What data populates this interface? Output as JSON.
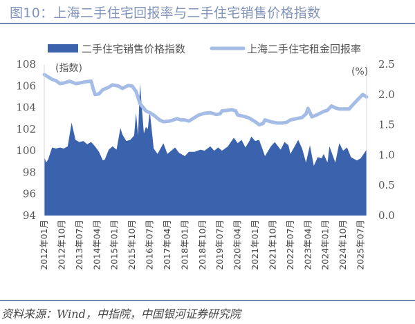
{
  "title": "图10：上海二手住宅回报率与二手住宅销售价格指数",
  "source": "资料来源：Wind，中指院，中国银河证券研究院",
  "chart_data": {
    "type": "area+line",
    "x_unit": "month",
    "x_start": "2012-01",
    "x_end": "2025-10",
    "x_tick_labels": [
      "2012年01月",
      "2012年10月",
      "2013年07月",
      "2014年04月",
      "2015年01月",
      "2015年10月",
      "2016年07月",
      "2017年04月",
      "2018年01月",
      "2018年10月",
      "2019年07月",
      "2020年04月",
      "2021年01月",
      "2021年10月",
      "2022年07月",
      "2023年04月",
      "2024年01月",
      "2024年10月",
      "2025年07月"
    ],
    "left_axis": {
      "label": "(指数)",
      "ylim": [
        94,
        108
      ],
      "ticks": [
        "94",
        "96",
        "98",
        "100",
        "102",
        "104",
        "106",
        "108"
      ]
    },
    "right_axis": {
      "label": "(%)",
      "ylim": [
        0,
        2.5
      ],
      "ticks": [
        "0.0",
        "0.5",
        "1.0",
        "1.5",
        "2.0",
        "2.5"
      ]
    },
    "legend_position": "top",
    "series": [
      {
        "name": "二手住宅销售价格指数",
        "kind": "area",
        "axis": "left",
        "color": "#3a62ad",
        "points_month_index_value": [
          [
            0,
            99.4
          ],
          [
            1,
            98.9
          ],
          [
            2,
            99.2
          ],
          [
            4,
            100.3
          ],
          [
            6,
            100.2
          ],
          [
            8,
            100.3
          ],
          [
            10,
            100.2
          ],
          [
            12,
            100.4
          ],
          [
            14,
            102.6
          ],
          [
            16,
            101.0
          ],
          [
            18,
            100.8
          ],
          [
            20,
            100.9
          ],
          [
            22,
            100.6
          ],
          [
            24,
            100.8
          ],
          [
            26,
            100.4
          ],
          [
            28,
            99.9
          ],
          [
            30,
            99.1
          ],
          [
            31,
            99.2
          ],
          [
            33,
            100.1
          ],
          [
            35,
            100.4
          ],
          [
            37,
            100.1
          ],
          [
            39,
            102.1
          ],
          [
            40,
            101.5
          ],
          [
            42,
            100.9
          ],
          [
            44,
            101.0
          ],
          [
            46,
            101.4
          ],
          [
            47,
            103.5
          ],
          [
            48,
            101.4
          ],
          [
            49,
            106.2
          ],
          [
            51,
            101.6
          ],
          [
            52,
            102.2
          ],
          [
            53,
            102.0
          ],
          [
            54,
            103.7
          ],
          [
            56,
            100.2
          ],
          [
            58,
            99.7
          ],
          [
            61,
            100.7
          ],
          [
            63,
            99.7
          ],
          [
            65,
            100.0
          ],
          [
            67,
            100.3
          ],
          [
            69,
            99.8
          ],
          [
            72,
            99.5
          ],
          [
            74,
            99.9
          ],
          [
            77,
            99.9
          ],
          [
            80,
            100.1
          ],
          [
            82,
            100.0
          ],
          [
            85,
            100.4
          ],
          [
            87,
            100.0
          ],
          [
            89,
            100.3
          ],
          [
            91,
            100.0
          ],
          [
            94,
            100.4
          ],
          [
            97,
            101.2
          ],
          [
            99,
            100.7
          ],
          [
            101,
            101.0
          ],
          [
            103,
            100.3
          ],
          [
            105,
            100.9
          ],
          [
            106,
            101.3
          ],
          [
            108,
            100.9
          ],
          [
            110,
            101.0
          ],
          [
            113,
            99.5
          ],
          [
            116,
            100.4
          ],
          [
            118,
            100.8
          ],
          [
            121,
            100.1
          ],
          [
            123,
            100.8
          ],
          [
            125,
            100.5
          ],
          [
            126,
            99.7
          ],
          [
            130,
            101.0
          ],
          [
            132,
            100.2
          ],
          [
            134,
            98.9
          ],
          [
            136,
            100.5
          ],
          [
            138,
            98.6
          ],
          [
            140,
            99.4
          ],
          [
            142,
            99.3
          ],
          [
            143,
            99.7
          ],
          [
            145,
            98.9
          ],
          [
            146,
            100.4
          ],
          [
            149,
            98.9
          ],
          [
            151,
            100.7
          ],
          [
            153,
            100.0
          ],
          [
            155,
            100.3
          ],
          [
            157,
            99.4
          ],
          [
            160,
            99.1
          ],
          [
            162,
            99.3
          ],
          [
            165,
            100.1
          ]
        ]
      },
      {
        "name": "上海二手住宅租金回报率",
        "kind": "line",
        "axis": "right",
        "color": "#a4bce6",
        "points_month_index_value": [
          [
            0,
            2.33
          ],
          [
            2,
            2.29
          ],
          [
            4,
            2.25
          ],
          [
            6,
            2.23
          ],
          [
            8,
            2.18
          ],
          [
            10,
            2.19
          ],
          [
            13,
            2.22
          ],
          [
            16,
            2.18
          ],
          [
            18,
            2.19
          ],
          [
            21,
            2.21
          ],
          [
            24,
            2.22
          ],
          [
            25,
            2.1
          ],
          [
            26,
            2.0
          ],
          [
            28,
            2.01
          ],
          [
            30,
            2.08
          ],
          [
            33,
            2.12
          ],
          [
            35,
            2.16
          ],
          [
            38,
            2.14
          ],
          [
            40,
            2.1
          ],
          [
            43,
            2.15
          ],
          [
            45,
            2.14
          ],
          [
            47,
            2.05
          ],
          [
            49,
            1.85
          ],
          [
            52,
            1.73
          ],
          [
            54,
            1.7
          ],
          [
            56,
            1.66
          ],
          [
            59,
            1.58
          ],
          [
            61,
            1.55
          ],
          [
            64,
            1.56
          ],
          [
            66,
            1.58
          ],
          [
            68,
            1.6
          ],
          [
            70,
            1.58
          ],
          [
            72,
            1.58
          ],
          [
            74,
            1.56
          ],
          [
            77,
            1.62
          ],
          [
            79,
            1.66
          ],
          [
            82,
            1.69
          ],
          [
            85,
            1.7
          ],
          [
            88,
            1.67
          ],
          [
            90,
            1.68
          ],
          [
            91,
            1.73
          ],
          [
            94,
            1.74
          ],
          [
            96,
            1.75
          ],
          [
            98,
            1.73
          ],
          [
            99,
            1.66
          ],
          [
            102,
            1.64
          ],
          [
            105,
            1.61
          ],
          [
            108,
            1.55
          ],
          [
            110,
            1.5
          ],
          [
            112,
            1.52
          ],
          [
            113,
            1.58
          ],
          [
            116,
            1.55
          ],
          [
            119,
            1.53
          ],
          [
            122,
            1.53
          ],
          [
            124,
            1.54
          ],
          [
            126,
            1.58
          ],
          [
            129,
            1.6
          ],
          [
            132,
            1.62
          ],
          [
            134,
            1.68
          ],
          [
            135,
            1.77
          ],
          [
            137,
            1.63
          ],
          [
            140,
            1.67
          ],
          [
            143,
            1.72
          ],
          [
            145,
            1.74
          ],
          [
            147,
            1.81
          ],
          [
            149,
            1.78
          ],
          [
            151,
            1.76
          ],
          [
            154,
            1.76
          ],
          [
            156,
            1.76
          ],
          [
            158,
            1.83
          ],
          [
            160,
            1.9
          ],
          [
            163,
            2.0
          ],
          [
            165,
            1.96
          ]
        ]
      }
    ]
  }
}
